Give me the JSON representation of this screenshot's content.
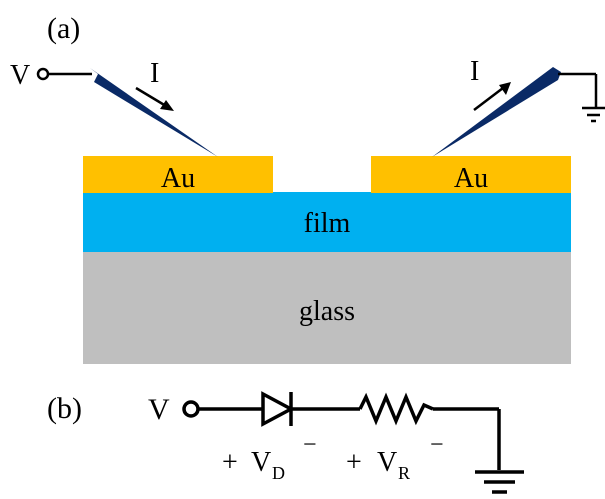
{
  "panel_a": {
    "label": "(a)",
    "left_terminal": "V",
    "left_current": "I",
    "right_current": "I",
    "left_contact": "Au",
    "right_contact": "Au",
    "film_layer": "film",
    "substrate_layer": "glass",
    "colors": {
      "gold": "#ffc000",
      "film": "#00b0f0",
      "glass": "#bfbfbf",
      "probe": "#0a2a66"
    }
  },
  "panel_b": {
    "label": "(b)",
    "input_terminal": "V",
    "diode_plus": "+",
    "diode_voltage": "V",
    "diode_subscript": "D",
    "diode_minus": "−",
    "resistor_plus": "+",
    "resistor_voltage": "V",
    "resistor_subscript": "R",
    "resistor_minus": "−"
  }
}
